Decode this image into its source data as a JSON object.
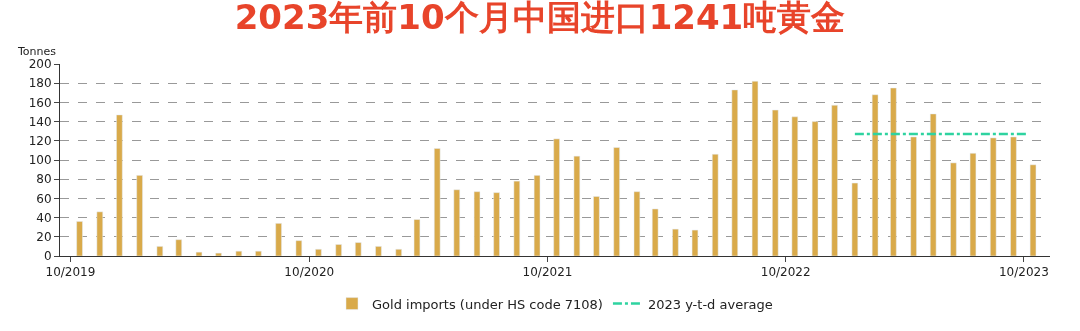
{
  "chart_data": {
    "type": "bar",
    "title": "2023年前10个月中国进口1241吨黄金",
    "ylabel": "Tonnes",
    "x": [
      "2019-10-15",
      "2019-11-15",
      "2019-12-15",
      "2020-01-15",
      "2020-02-15",
      "2020-03-15",
      "2020-04-15",
      "2020-05-15",
      "2020-06-15",
      "2020-07-15",
      "2020-08-15",
      "2020-09-15",
      "2020-10-15",
      "2020-11-15",
      "2020-12-15",
      "2021-01-15",
      "2021-02-15",
      "2021-03-15",
      "2021-04-15",
      "2021-05-15",
      "2021-06-15",
      "2021-07-15",
      "2021-08-15",
      "2021-09-15",
      "2021-10-15",
      "2021-11-15",
      "2021-12-15",
      "2022-01-15",
      "2022-02-15",
      "2022-03-15",
      "2022-04-15",
      "2022-05-15",
      "2022-06-15",
      "2022-07-15",
      "2022-08-15",
      "2022-09-15",
      "2022-10-15",
      "2022-11-15",
      "2022-12-15",
      "2023-01-15",
      "2023-02-15",
      "2023-03-15",
      "2023-04-15",
      "2023-05-15",
      "2023-06-15",
      "2023-07-15",
      "2023-08-15",
      "2023-09-15",
      "2023-10-15"
    ],
    "series": [
      {
        "name": "Gold imports (under HS code 7108)",
        "color": "#d9aa4a",
        "values": [
          36,
          46,
          147,
          84,
          10,
          17,
          4,
          3,
          5,
          5,
          34,
          16,
          7,
          12,
          14,
          10,
          7,
          38,
          112,
          69,
          67,
          66,
          78,
          84,
          122,
          104,
          62,
          113,
          67,
          49,
          28,
          27,
          106,
          173,
          182,
          152,
          145,
          140,
          157,
          76,
          168,
          175,
          124,
          148,
          97,
          107,
          123,
          124,
          95
        ]
      },
      {
        "name": "2023 y-t-d average",
        "type": "line",
        "line_style": "dashdot",
        "color": "#2ed3a0",
        "x": [
          "2023-01-15",
          "2023-10-05"
        ],
        "values": [
          127,
          127
        ]
      }
    ],
    "xlim": [
      "2019-09-15",
      "2023-11-10"
    ],
    "xticks": [
      {
        "value": "2019-10-01",
        "label": "10/2019"
      },
      {
        "value": "2020-10-01",
        "label": "10/2020"
      },
      {
        "value": "2021-10-01",
        "label": "10/2021"
      },
      {
        "value": "2022-10-01",
        "label": "10/2022"
      },
      {
        "value": "2023-10-01",
        "label": "10/2023"
      }
    ],
    "ylim": [
      0,
      200
    ],
    "yticks": [
      0,
      20,
      40,
      60,
      80,
      100,
      120,
      140,
      160,
      180,
      200
    ],
    "grid": "y",
    "legend": "bottom"
  }
}
